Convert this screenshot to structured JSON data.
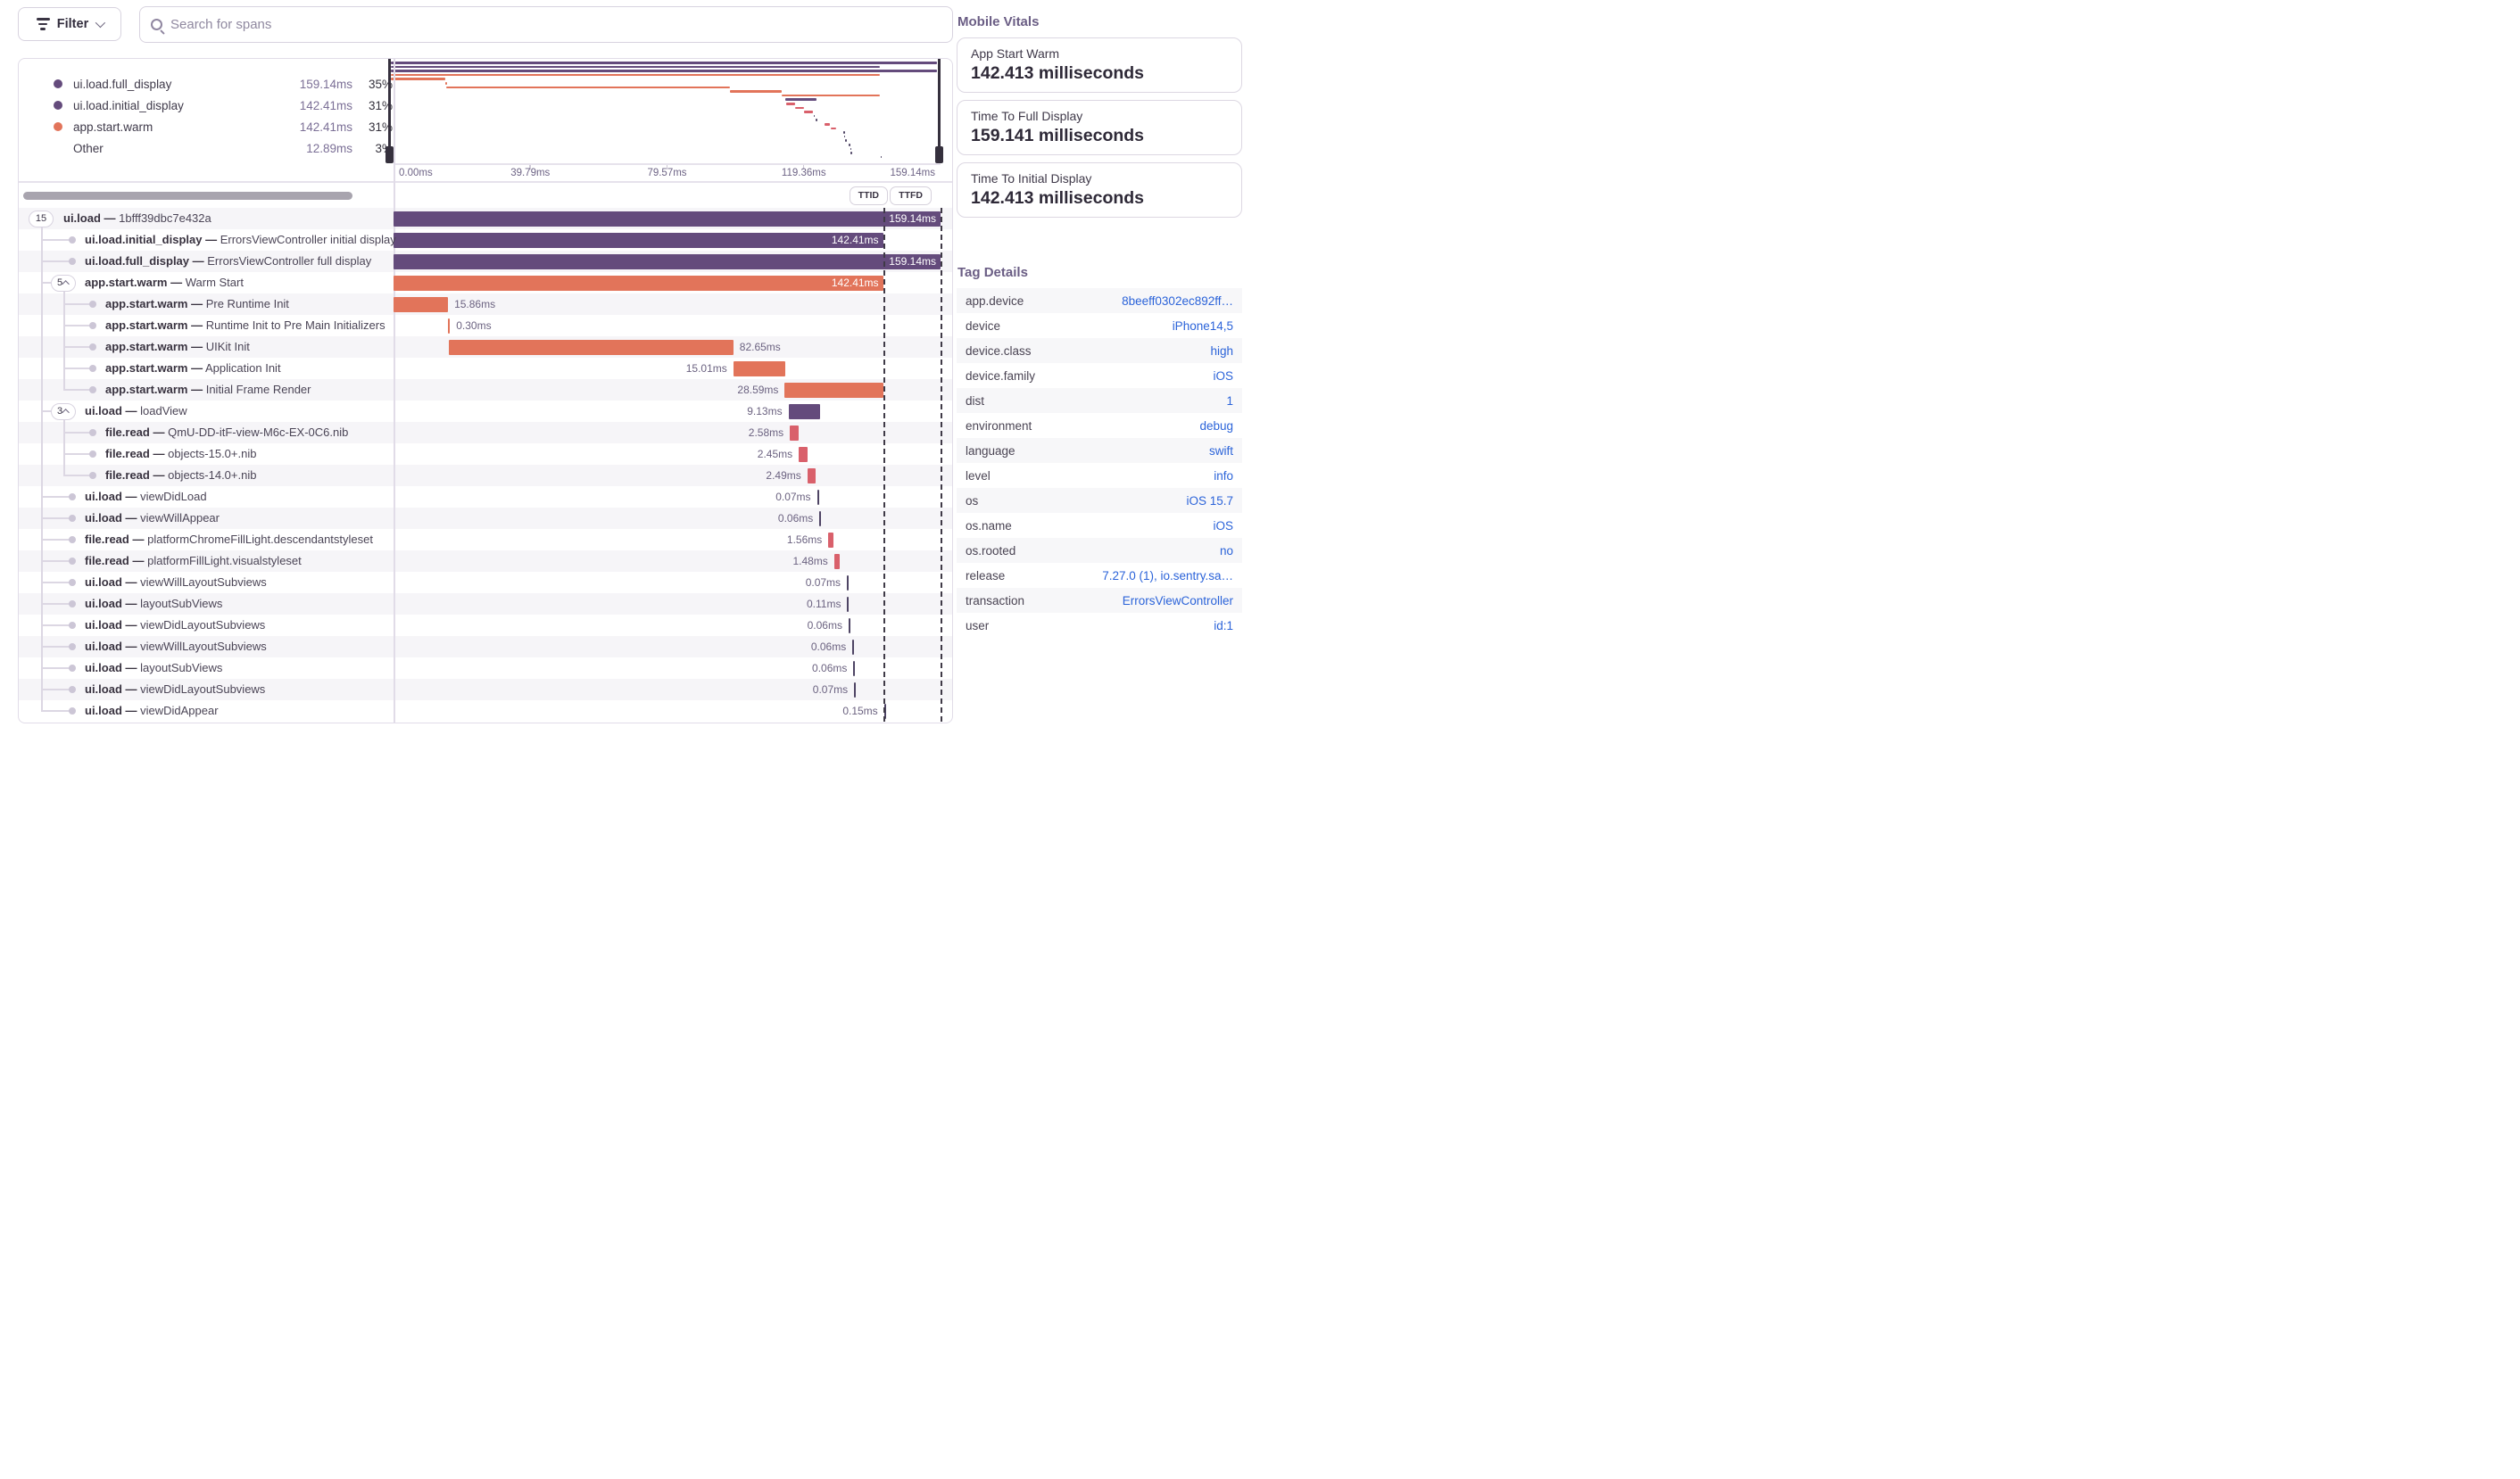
{
  "toolbar": {
    "filter_label": "Filter",
    "search_placeholder": "Search for spans"
  },
  "palette": {
    "purple": "#644b7c",
    "orange": "#e2745a",
    "red": "#d9606b",
    "purple_tick": "#4e4464",
    "guide": "#dcd7e3"
  },
  "legend": {
    "items": [
      {
        "label": "ui.load.full_display",
        "value": "159.14ms",
        "pct": "35%",
        "color": "#644b7c"
      },
      {
        "label": "ui.load.initial_display",
        "value": "142.41ms",
        "pct": "31%",
        "color": "#644b7c"
      },
      {
        "label": "app.start.warm",
        "value": "142.41ms",
        "pct": "31%",
        "color": "#e2745a"
      },
      {
        "label": "Other",
        "value": "12.89ms",
        "pct": "3%",
        "color": null
      }
    ]
  },
  "axis": {
    "ticks": [
      "0.00ms",
      "39.79ms",
      "79.57ms",
      "119.36ms",
      "159.14ms"
    ]
  },
  "controls": {
    "ttid": "TTID",
    "ttfd": "TTFD"
  },
  "trace": {
    "total_ms": 159.14,
    "ttid_ms": 142.41,
    "ttfd_ms": 159.14,
    "separator": "—",
    "spans": [
      {
        "op": "ui.load",
        "desc": "1bfff39dbc7e432a",
        "depth": 0,
        "badge": "15",
        "caret": false,
        "start": 0,
        "dur": 159.14,
        "label": "159.14ms",
        "color": "purple",
        "label_pos": "inside"
      },
      {
        "op": "ui.load.initial_display",
        "desc": "ErrorsViewController initial display",
        "depth": 1,
        "start": 0,
        "dur": 142.41,
        "label": "142.41ms",
        "color": "purple",
        "label_pos": "inside"
      },
      {
        "op": "ui.load.full_display",
        "desc": "ErrorsViewController full display",
        "depth": 1,
        "start": 0,
        "dur": 159.14,
        "label": "159.14ms",
        "color": "purple",
        "label_pos": "inside"
      },
      {
        "op": "app.start.warm",
        "desc": "Warm Start",
        "depth": 1,
        "badge": "5",
        "caret": true,
        "start": 0,
        "dur": 142.41,
        "label": "142.41ms",
        "color": "orange",
        "label_pos": "inside"
      },
      {
        "op": "app.start.warm",
        "desc": "Pre Runtime Init",
        "depth": 2,
        "start": 0,
        "dur": 15.86,
        "label": "15.86ms",
        "color": "orange",
        "label_pos": "right"
      },
      {
        "op": "app.start.warm",
        "desc": "Runtime Init to Pre Main Initializers",
        "depth": 2,
        "start": 15.9,
        "dur": 0.3,
        "label": "0.30ms",
        "color": "orange",
        "label_pos": "right"
      },
      {
        "op": "app.start.warm",
        "desc": "UIKit Init",
        "depth": 2,
        "start": 16.2,
        "dur": 82.65,
        "label": "82.65ms",
        "color": "orange",
        "label_pos": "right"
      },
      {
        "op": "app.start.warm",
        "desc": "Application Init",
        "depth": 2,
        "start": 98.85,
        "dur": 15.01,
        "label": "15.01ms",
        "color": "orange",
        "label_pos": "left"
      },
      {
        "op": "app.start.warm",
        "desc": "Initial Frame Render",
        "depth": 2,
        "start": 113.82,
        "dur": 28.59,
        "label": "28.59ms",
        "color": "orange",
        "label_pos": "left"
      },
      {
        "op": "ui.load",
        "desc": "loadView",
        "depth": 1,
        "badge": "3",
        "caret": true,
        "start": 114.9,
        "dur": 9.13,
        "label": "9.13ms",
        "color": "purple",
        "label_pos": "left"
      },
      {
        "op": "file.read",
        "desc": "QmU-DD-itF-view-M6c-EX-0C6.nib",
        "depth": 2,
        "start": 115.3,
        "dur": 2.58,
        "label": "2.58ms",
        "color": "red",
        "label_pos": "left"
      },
      {
        "op": "file.read",
        "desc": "objects-15.0+.nib",
        "depth": 2,
        "start": 117.9,
        "dur": 2.45,
        "label": "2.45ms",
        "color": "red",
        "label_pos": "left"
      },
      {
        "op": "file.read",
        "desc": "objects-14.0+.nib",
        "depth": 2,
        "start": 120.4,
        "dur": 2.49,
        "label": "2.49ms",
        "color": "red",
        "label_pos": "left"
      },
      {
        "op": "ui.load",
        "desc": "viewDidLoad",
        "depth": 1,
        "start": 123.2,
        "dur": 0.07,
        "label": "0.07ms",
        "color": "purple",
        "label_pos": "left"
      },
      {
        "op": "ui.load",
        "desc": "viewWillAppear",
        "depth": 1,
        "start": 123.9,
        "dur": 0.06,
        "label": "0.06ms",
        "color": "purple",
        "label_pos": "left"
      },
      {
        "op": "file.read",
        "desc": "platformChromeFillLight.descendantstyleset",
        "depth": 1,
        "start": 126.5,
        "dur": 1.56,
        "label": "1.56ms",
        "color": "red",
        "label_pos": "left"
      },
      {
        "op": "file.read",
        "desc": "platformFillLight.visualstyleset",
        "depth": 1,
        "start": 128.2,
        "dur": 1.48,
        "label": "1.48ms",
        "color": "red",
        "label_pos": "left"
      },
      {
        "op": "ui.load",
        "desc": "viewWillLayoutSubviews",
        "depth": 1,
        "start": 131.9,
        "dur": 0.07,
        "label": "0.07ms",
        "color": "purple",
        "label_pos": "left"
      },
      {
        "op": "ui.load",
        "desc": "layoutSubViews",
        "depth": 1,
        "start": 132.0,
        "dur": 0.11,
        "label": "0.11ms",
        "color": "purple",
        "label_pos": "left"
      },
      {
        "op": "ui.load",
        "desc": "viewDidLayoutSubviews",
        "depth": 1,
        "start": 132.4,
        "dur": 0.06,
        "label": "0.06ms",
        "color": "purple",
        "label_pos": "left"
      },
      {
        "op": "ui.load",
        "desc": "viewWillLayoutSubviews",
        "depth": 1,
        "start": 133.5,
        "dur": 0.06,
        "label": "0.06ms",
        "color": "purple",
        "label_pos": "left"
      },
      {
        "op": "ui.load",
        "desc": "layoutSubViews",
        "depth": 1,
        "start": 133.8,
        "dur": 0.06,
        "label": "0.06ms",
        "color": "purple",
        "label_pos": "left"
      },
      {
        "op": "ui.load",
        "desc": "viewDidLayoutSubviews",
        "depth": 1,
        "start": 134.0,
        "dur": 0.07,
        "label": "0.07ms",
        "color": "purple",
        "label_pos": "left"
      },
      {
        "op": "ui.load",
        "desc": "viewDidAppear",
        "depth": 1,
        "start": 142.7,
        "dur": 0.15,
        "label": "0.15ms",
        "color": "purple",
        "label_pos": "left"
      }
    ]
  },
  "vitals": {
    "heading": "Mobile Vitals",
    "cards": [
      {
        "label": "App Start Warm",
        "value": "142.413 milliseconds"
      },
      {
        "label": "Time To Full Display",
        "value": "159.141 milliseconds"
      },
      {
        "label": "Time To Initial Display",
        "value": "142.413 milliseconds"
      }
    ]
  },
  "tags": {
    "heading": "Tag Details",
    "rows": [
      {
        "key": "app.device",
        "value": "8beeff0302ec892ff…"
      },
      {
        "key": "device",
        "value": "iPhone14,5"
      },
      {
        "key": "device.class",
        "value": "high"
      },
      {
        "key": "device.family",
        "value": "iOS"
      },
      {
        "key": "dist",
        "value": "1"
      },
      {
        "key": "environment",
        "value": "debug"
      },
      {
        "key": "language",
        "value": "swift"
      },
      {
        "key": "level",
        "value": "info"
      },
      {
        "key": "os",
        "value": "iOS 15.7"
      },
      {
        "key": "os.name",
        "value": "iOS"
      },
      {
        "key": "os.rooted",
        "value": "no"
      },
      {
        "key": "release",
        "value": "7.27.0 (1), io.sentry.sa…"
      },
      {
        "key": "transaction",
        "value": "ErrorsViewController"
      },
      {
        "key": "user",
        "value": "id:1"
      }
    ]
  }
}
